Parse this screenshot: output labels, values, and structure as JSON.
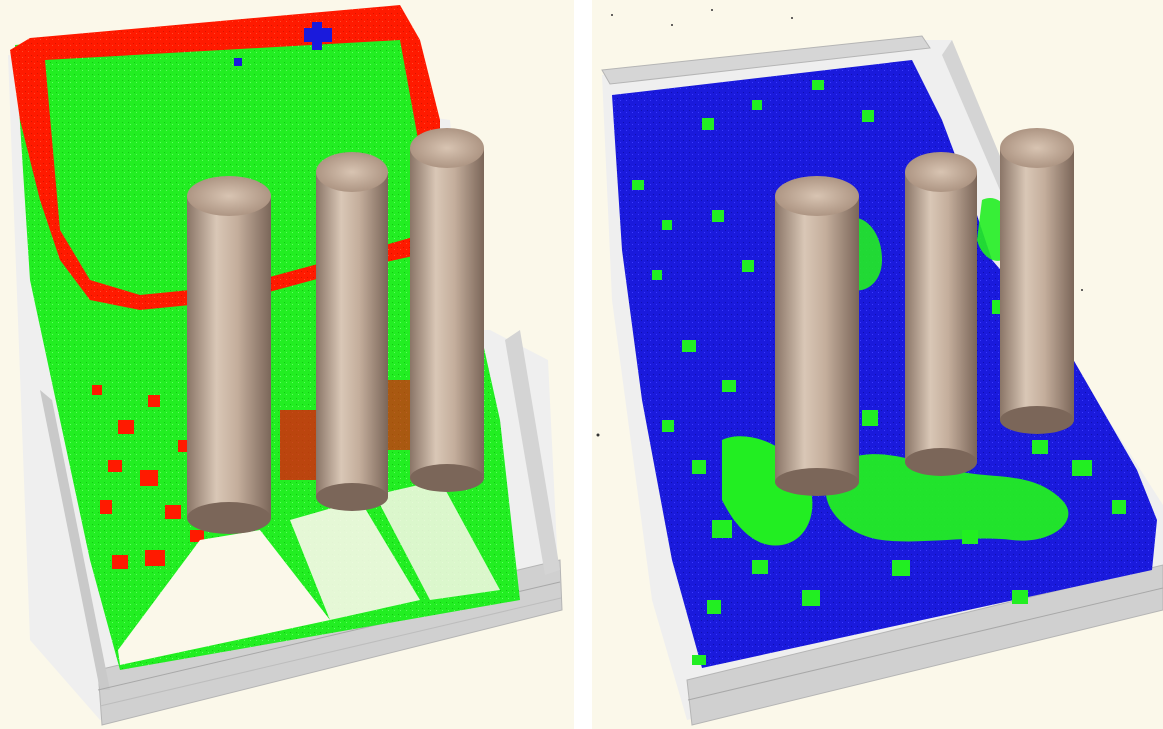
{
  "figure": {
    "panels": [
      {
        "id": "left",
        "scene": "particle-fluid-simulation",
        "particle_colors": [
          "#ff1a00",
          "#22ee22",
          "#1a1adc"
        ],
        "pillar_count": 3
      },
      {
        "id": "right",
        "scene": "particle-fluid-simulation",
        "particle_colors": [
          "#1a1adc",
          "#22ee22"
        ],
        "pillar_count": 3
      }
    ],
    "colors": {
      "background": "#fbf8ea",
      "tank_wall": "#d6d6d6",
      "tank_wall_shadow": "#a8a8a8",
      "pillar_light": "#d9c7b6",
      "pillar_dark": "#8a7567",
      "red_particles": "#ff1a00",
      "green_particles": "#22ee22",
      "blue_particles": "#1a1adc"
    }
  }
}
